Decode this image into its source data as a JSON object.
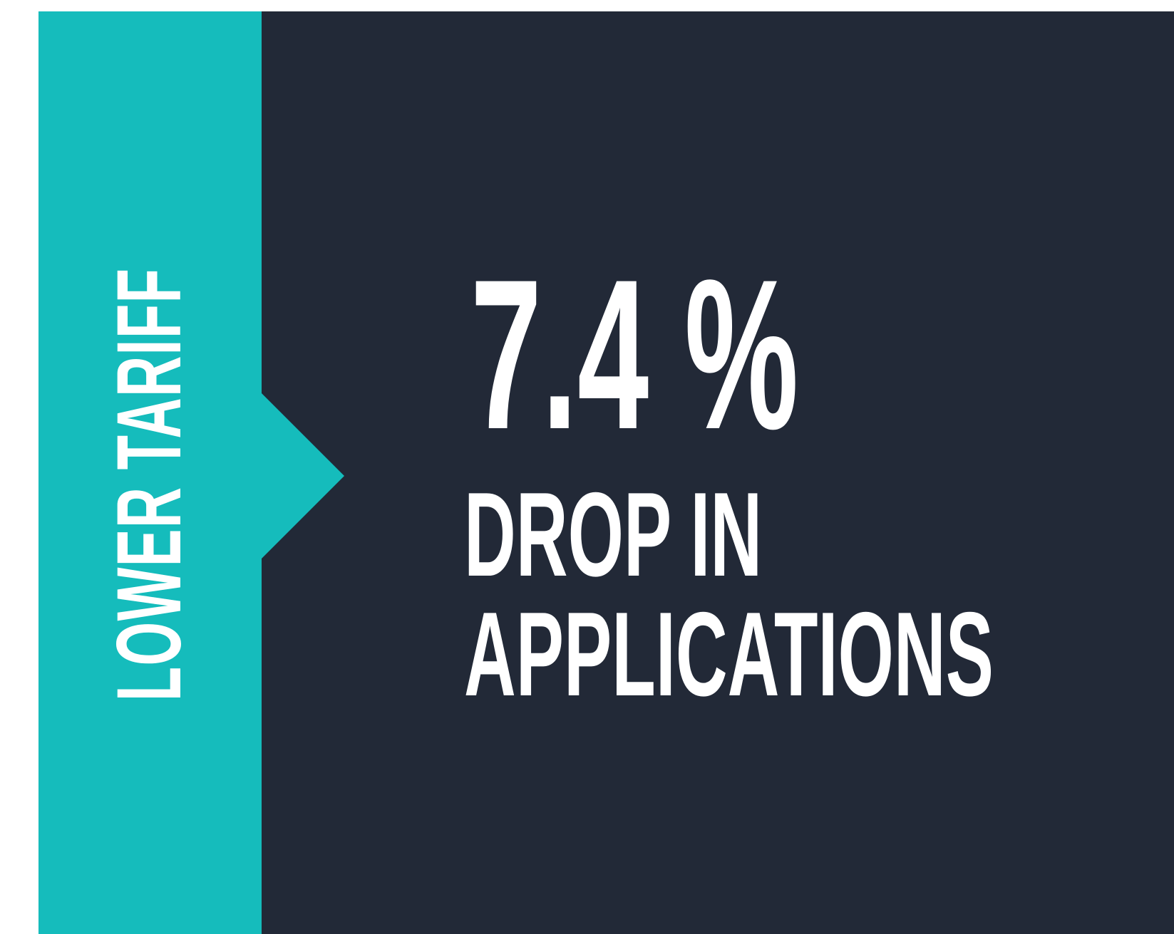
{
  "side_label": "LOWER TARIFF",
  "stat": {
    "value": "7.4 %",
    "caption_line1": "DROP IN",
    "caption_line2": "APPLICATIONS"
  },
  "colors": {
    "band": "#15bcbc",
    "background": "#222937",
    "text": "#ffffff"
  }
}
